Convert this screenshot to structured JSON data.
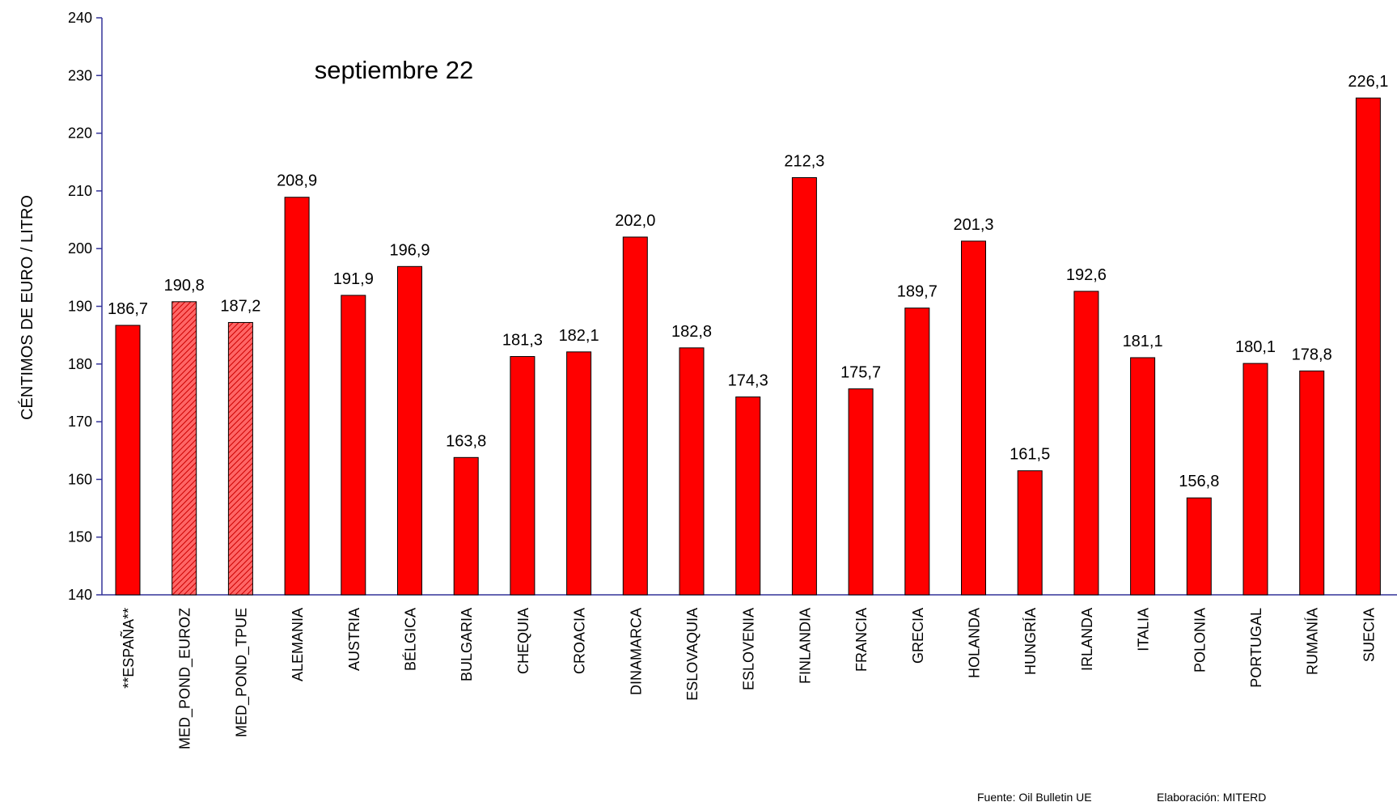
{
  "chart_data": {
    "type": "bar",
    "title": "septiembre 22",
    "y_label": "CÉNTIMOS DE EURO / LITRO",
    "categories": [
      "**ESPAÑA**",
      "MED_POND_EUROZ",
      "MED_POND_TPUE",
      "ALEMANIA",
      "AUSTRIA",
      "BÉLGICA",
      "BULGARIA",
      "CHEQUIA",
      "CROACIA",
      "DINAMARCA",
      "ESLOVAQUIA",
      "ESLOVENIA",
      "FINLANDIA",
      "FRANCIA",
      "GRECIA",
      "HOLANDA",
      "HUNGRÍA",
      "IRLANDA",
      "ITALIA",
      "POLONIA",
      "PORTUGAL",
      "RUMANÍA",
      "SUECIA"
    ],
    "values": [
      186.7,
      190.8,
      187.2,
      208.9,
      191.9,
      196.9,
      163.8,
      181.3,
      182.1,
      202.0,
      182.8,
      174.3,
      212.3,
      175.7,
      189.7,
      201.3,
      161.5,
      192.6,
      181.1,
      156.8,
      180.1,
      178.8,
      226.1
    ],
    "value_labels": [
      "186,7",
      "190,8",
      "187,2",
      "208,9",
      "191,9",
      "196,9",
      "163,8",
      "181,3",
      "182,1",
      "202,0",
      "182,8",
      "174,3",
      "212,3",
      "175,7",
      "189,7",
      "201,3",
      "161,5",
      "192,6",
      "181,1",
      "156,8",
      "180,1",
      "178,8",
      "226,1"
    ],
    "color": "#ff0000",
    "patterns": [
      "solid",
      "hatched",
      "hatched",
      "solid",
      "solid",
      "solid",
      "solid",
      "solid",
      "solid",
      "solid",
      "solid",
      "solid",
      "solid",
      "solid",
      "solid",
      "solid",
      "solid",
      "solid",
      "solid",
      "solid",
      "solid",
      "solid",
      "solid"
    ],
    "ylim": [
      140,
      240
    ],
    "yticks": [
      140,
      150,
      160,
      170,
      180,
      190,
      200,
      210,
      220,
      230,
      240
    ],
    "grid": false,
    "footnotes": [
      "Fuente: Oil Bulletin UE",
      "Elaboración: MITERD"
    ]
  }
}
